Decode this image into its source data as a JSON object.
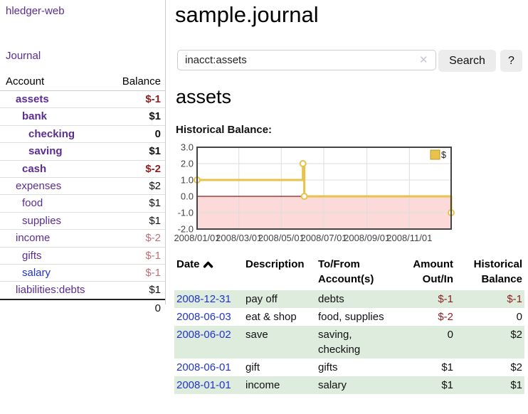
{
  "colors": {
    "link-purple": "#5b2c91",
    "link-blue": "#2233cc",
    "negative": "#8f1d1d",
    "negative-light": "#bd7075",
    "row-shaded": "#ddecdd",
    "button-bg": "#ececec"
  },
  "sidebar": {
    "brand": "hledger-web",
    "journal_link": "Journal",
    "accounts": {
      "headers": {
        "account": "Account",
        "balance": "Balance"
      },
      "rows": [
        {
          "account": "assets",
          "balance": "$-1",
          "depth": 1,
          "bold": true,
          "balance_style": "negative",
          "link_style": "visited"
        },
        {
          "account": "bank",
          "balance": "$1",
          "depth": 2,
          "bold": true,
          "balance_style": "normal",
          "link_style": "visited"
        },
        {
          "account": "checking",
          "balance": "0",
          "depth": 3,
          "bold": true,
          "balance_style": "normal",
          "link_style": "visited"
        },
        {
          "account": "saving",
          "balance": "$1",
          "depth": 3,
          "bold": true,
          "balance_style": "normal",
          "link_style": "visited"
        },
        {
          "account": "cash",
          "balance": "$-2",
          "depth": 2,
          "bold": true,
          "balance_style": "negative",
          "link_style": "visited"
        },
        {
          "account": "expenses",
          "balance": "$2",
          "depth": 1,
          "bold": false,
          "balance_style": "normal",
          "link_style": "visited"
        },
        {
          "account": "food",
          "balance": "$1",
          "depth": 2,
          "bold": false,
          "balance_style": "normal",
          "link_style": "visited"
        },
        {
          "account": "supplies",
          "balance": "$1",
          "depth": 2,
          "bold": false,
          "balance_style": "normal",
          "link_style": "visited"
        },
        {
          "account": "income",
          "balance": "$-2",
          "depth": 1,
          "bold": false,
          "balance_style": "negative-light",
          "link_style": "visited"
        },
        {
          "account": "gifts",
          "balance": "$-1",
          "depth": 2,
          "bold": false,
          "balance_style": "negative-light",
          "link_style": "visited"
        },
        {
          "account": "salary",
          "balance": "$-1",
          "depth": 2,
          "bold": false,
          "balance_style": "negative-light",
          "link_style": "unvisited"
        },
        {
          "account": "liabilities:debts",
          "balance": "$1",
          "depth": 1,
          "bold": false,
          "balance_style": "normal",
          "link_style": "visited"
        }
      ],
      "total": "0"
    }
  },
  "main": {
    "title": "sample.journal",
    "search": {
      "value": "inacct:assets",
      "clear_icon": "✕",
      "search_button": "Search",
      "help_button": "?"
    },
    "account_heading": "assets",
    "section_label": "Historical Balance:"
  },
  "chart_data": {
    "type": "line",
    "line_style": "step-after",
    "title": "Historical Balance",
    "x_range": [
      "2008-01-01",
      "2008-12-31"
    ],
    "y_range": [
      -2,
      3
    ],
    "y_ticks": [
      "3.0",
      "2.0",
      "1.0",
      "0.0",
      "-1.0",
      "-2.0"
    ],
    "x_ticks": [
      {
        "label": "2008/01/01",
        "date": "2008-01-01"
      },
      {
        "label": "2008/03/01",
        "date": "2008-03-01"
      },
      {
        "label": "2008/05/01",
        "date": "2008-05-01"
      },
      {
        "label": "2008/07/01",
        "date": "2008-07-01"
      },
      {
        "label": "2008/09/01",
        "date": "2008-09-01"
      },
      {
        "label": "2008/11/01",
        "date": "2008-11-01"
      }
    ],
    "series": [
      {
        "name": "$",
        "color": "#e8c24a",
        "marker_fill": "#ffffff",
        "points": [
          {
            "date": "2008-01-01",
            "value": 1
          },
          {
            "date": "2008-06-01",
            "value": 2
          },
          {
            "date": "2008-06-03",
            "value": 0
          },
          {
            "date": "2008-12-31",
            "value": -1
          }
        ]
      }
    ],
    "legend": {
      "label": "$",
      "position": "top-right"
    },
    "grid": true,
    "negative_region_color": "#fcdada",
    "zero_line_color": "#8b1a1a",
    "grid_color": "#dddddd",
    "border_color": "#444444"
  },
  "register": {
    "columns": [
      {
        "label": "Date",
        "sorted": "ascending"
      },
      {
        "label": "Description"
      },
      {
        "label": "To/From Account(s)"
      },
      {
        "label": "Amount Out/In"
      },
      {
        "label": "Historical Balance"
      }
    ],
    "rows": [
      {
        "date": "2008-12-31",
        "description": "pay off",
        "accounts": "debts",
        "amount": "$-1",
        "amount_negative": true,
        "balance": "$-1",
        "balance_negative": true,
        "shaded": true
      },
      {
        "date": "2008-06-03",
        "description": "eat & shop",
        "accounts": "food, supplies",
        "amount": "$-2",
        "amount_negative": true,
        "balance": "0",
        "balance_negative": false,
        "shaded": false
      },
      {
        "date": "2008-06-02",
        "description": "save",
        "accounts": "saving, checking",
        "amount": "0",
        "amount_negative": false,
        "balance": "$2",
        "balance_negative": false,
        "shaded": true
      },
      {
        "date": "2008-06-01",
        "description": "gift",
        "accounts": "gifts",
        "amount": "$1",
        "amount_negative": false,
        "balance": "$2",
        "balance_negative": false,
        "shaded": false
      },
      {
        "date": "2008-01-01",
        "description": "income",
        "accounts": "salary",
        "amount": "$1",
        "amount_negative": false,
        "balance": "$1",
        "balance_negative": false,
        "shaded": true
      }
    ]
  }
}
